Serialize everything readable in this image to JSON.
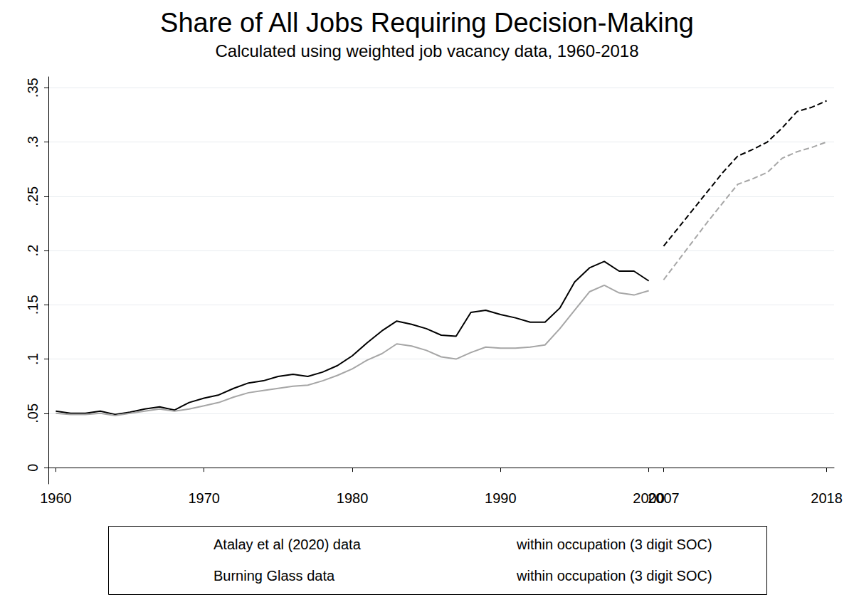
{
  "chart_data": {
    "type": "line",
    "title": "Share of All Jobs Requiring Decision-Making",
    "subtitle": "Calculated using weighted job vacancy data, 1960-2018",
    "categories": [
      "1960",
      null,
      null,
      null,
      null,
      null,
      null,
      null,
      null,
      null,
      "1970",
      null,
      null,
      null,
      null,
      null,
      null,
      null,
      null,
      null,
      "1980",
      null,
      null,
      null,
      null,
      null,
      null,
      null,
      null,
      null,
      "1990",
      null,
      null,
      null,
      null,
      null,
      null,
      null,
      null,
      null,
      "2000",
      "2007",
      null,
      null,
      null,
      null,
      null,
      null,
      null,
      null,
      null,
      null,
      "2018"
    ],
    "series": [
      {
        "name": "Atalay et al (2020) data",
        "color": "#000000",
        "line_style": "solid",
        "values": [
          0.052,
          0.05,
          0.05,
          0.052,
          0.049,
          0.051,
          0.054,
          0.056,
          0.053,
          0.06,
          0.064,
          0.067,
          0.073,
          0.078,
          0.08,
          0.084,
          0.086,
          0.084,
          0.088,
          0.094,
          0.103,
          0.115,
          0.126,
          0.135,
          0.132,
          0.128,
          0.122,
          0.121,
          0.143,
          0.145,
          0.141,
          0.138,
          0.134,
          0.134,
          0.147,
          0.171,
          0.184,
          0.19,
          0.181,
          0.181,
          0.172,
          null,
          null,
          null,
          null,
          null,
          null,
          null,
          null,
          null,
          null,
          null,
          null
        ]
      },
      {
        "name": "within occupation (3 digit SOC)",
        "color": "#a6a6a6",
        "line_style": "solid",
        "values": [
          0.05,
          0.049,
          0.049,
          0.05,
          0.048,
          0.05,
          0.052,
          0.054,
          0.052,
          0.054,
          0.057,
          0.06,
          0.065,
          0.069,
          0.071,
          0.073,
          0.075,
          0.076,
          0.08,
          0.085,
          0.091,
          0.099,
          0.105,
          0.114,
          0.112,
          0.108,
          0.102,
          0.1,
          0.106,
          0.111,
          0.11,
          0.11,
          0.111,
          0.113,
          0.128,
          0.145,
          0.162,
          0.168,
          0.161,
          0.159,
          0.163,
          null,
          null,
          null,
          null,
          null,
          null,
          null,
          null,
          null,
          null,
          null,
          null
        ]
      },
      {
        "name": "Burning Glass data",
        "color": "#000000",
        "line_style": "dashed",
        "values": [
          null,
          null,
          null,
          null,
          null,
          null,
          null,
          null,
          null,
          null,
          null,
          null,
          null,
          null,
          null,
          null,
          null,
          null,
          null,
          null,
          null,
          null,
          null,
          null,
          null,
          null,
          null,
          null,
          null,
          null,
          null,
          null,
          null,
          null,
          null,
          null,
          null,
          null,
          null,
          null,
          null,
          0.204,
          0.221,
          0.238,
          0.255,
          0.272,
          0.287,
          0.293,
          0.3,
          0.313,
          0.328,
          0.332,
          0.338
        ]
      },
      {
        "name": "within occupation (3 digit SOC)",
        "color": "#a6a6a6",
        "line_style": "dashed",
        "values": [
          null,
          null,
          null,
          null,
          null,
          null,
          null,
          null,
          null,
          null,
          null,
          null,
          null,
          null,
          null,
          null,
          null,
          null,
          null,
          null,
          null,
          null,
          null,
          null,
          null,
          null,
          null,
          null,
          null,
          null,
          null,
          null,
          null,
          null,
          null,
          null,
          null,
          null,
          null,
          null,
          null,
          0.173,
          0.191,
          0.209,
          0.227,
          0.244,
          0.261,
          0.266,
          0.272,
          0.285,
          0.291,
          0.295,
          0.3
        ]
      }
    ],
    "ylim": [
      -0.015,
      0.36
    ],
    "yticks": [
      0,
      {
        "value": 0.05,
        "label": ".05"
      },
      {
        "value": 0.1,
        "label": ".1"
      },
      {
        "value": 0.15,
        "label": ".15"
      },
      {
        "value": 0.2,
        "label": ".2"
      },
      {
        "value": 0.25,
        "label": ".25"
      },
      {
        "value": 0.3,
        "label": ".3"
      },
      {
        "value": 0.35,
        "label": ".35"
      }
    ],
    "grid": true,
    "legend": "bottom"
  }
}
